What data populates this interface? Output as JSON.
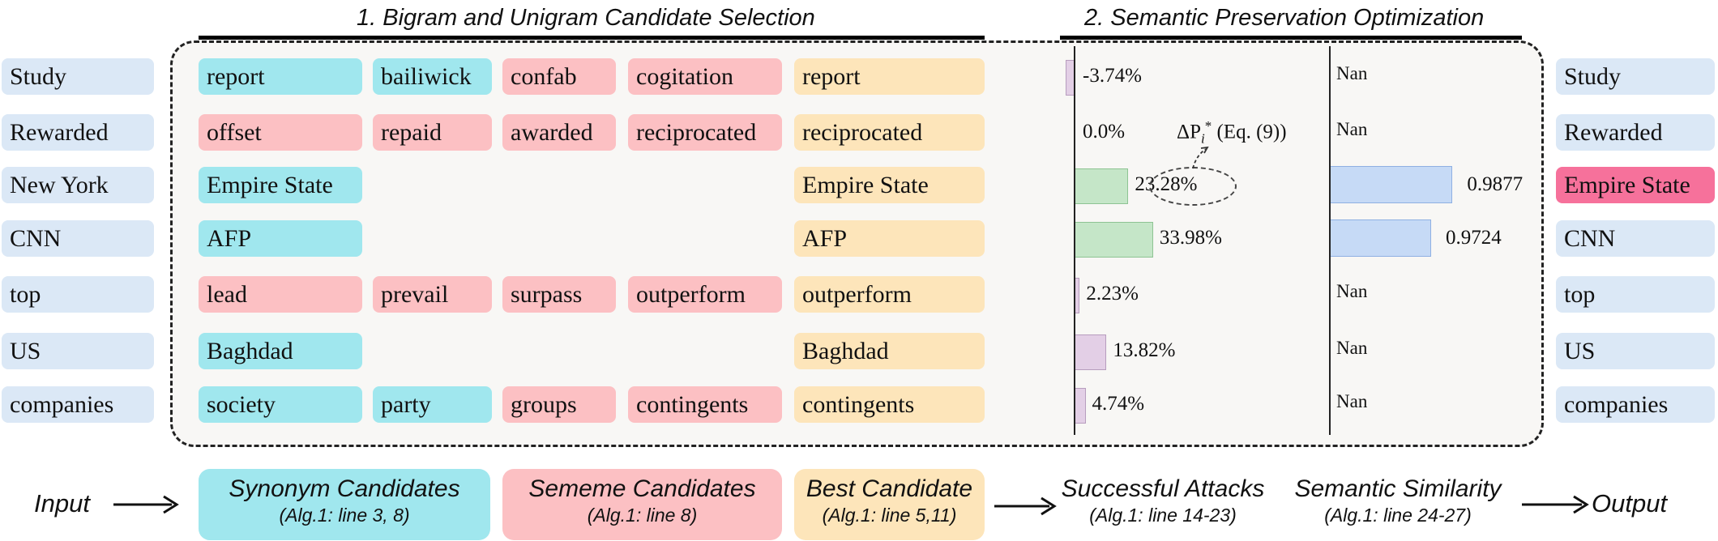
{
  "titles": {
    "section1": "1. Bigram and Unigram Candidate Selection",
    "section2": "2. Semantic Preservation Optimization"
  },
  "rows": [
    {
      "input": "Study",
      "synonyms": [
        "report",
        "bailiwick"
      ],
      "sememes": [
        "confab",
        "cogitation"
      ],
      "best": "report",
      "delta": -3.74,
      "delta_label": "-3.74%",
      "similarity": null,
      "similarity_label": "Nan",
      "output": "Study",
      "output_highlight": false
    },
    {
      "input": "Rewarded",
      "synonyms": [],
      "sememes": [
        "offset",
        "repaid",
        "awarded",
        "reciprocated"
      ],
      "best": "reciprocated",
      "delta": 0.0,
      "delta_label": "0.0%",
      "similarity": null,
      "similarity_label": "Nan",
      "output": "Rewarded",
      "output_highlight": false
    },
    {
      "input": "New York",
      "synonyms": [
        "Empire State"
      ],
      "sememes": [],
      "best": "Empire State",
      "delta": 23.28,
      "delta_label": "23.28%",
      "similarity": 0.9877,
      "similarity_label": "0.9877",
      "output": "Empire State",
      "output_highlight": true
    },
    {
      "input": "CNN",
      "synonyms": [
        "AFP"
      ],
      "sememes": [],
      "best": "AFP",
      "delta": 33.98,
      "delta_label": "33.98%",
      "similarity": 0.9724,
      "similarity_label": "0.9724",
      "output": "CNN",
      "output_highlight": false
    },
    {
      "input": "top",
      "synonyms": [],
      "sememes": [
        "lead",
        "prevail",
        "surpass",
        "outperform"
      ],
      "best": "outperform",
      "delta": 2.23,
      "delta_label": "2.23%",
      "similarity": null,
      "similarity_label": "Nan",
      "output": "top",
      "output_highlight": false
    },
    {
      "input": "US",
      "synonyms": [
        "Baghdad"
      ],
      "sememes": [],
      "best": "Baghdad",
      "delta": 13.82,
      "delta_label": "13.82%",
      "similarity": null,
      "similarity_label": "Nan",
      "output": "US",
      "output_highlight": false
    },
    {
      "input": "companies",
      "synonyms": [
        "society",
        "party"
      ],
      "sememes": [
        "groups",
        "contingents"
      ],
      "best": "contingents",
      "delta": 4.74,
      "delta_label": "4.74%",
      "similarity": null,
      "similarity_label": "Nan",
      "output": "companies",
      "output_highlight": false
    }
  ],
  "annotation": {
    "delta_symbol": "ΔP",
    "delta_sub": "i",
    "delta_sup": "*",
    "delta_eq": " (Eq. (9))"
  },
  "legend": {
    "input": "Input",
    "output": "Output",
    "synonym": {
      "title": "Synonym Candidates",
      "sub": "(Alg.1: line 3, 8)"
    },
    "sememe": {
      "title": "Sememe Candidates",
      "sub": "(Alg.1: line 8)"
    },
    "best": {
      "title": "Best Candidate",
      "sub": "(Alg.1: line 5,11)"
    },
    "attacks": {
      "title": "Successful Attacks",
      "sub": "(Alg.1: line 14-23)"
    },
    "similarity": {
      "title": "Semantic Similarity",
      "sub": "(Alg.1: line 24-27)"
    }
  },
  "colors": {
    "input_chip": "#dbe8f6",
    "synonym": "#a0e7ee",
    "sememe": "#fcc0c3",
    "best": "#fde5ba",
    "output_highlight": "#f6719b",
    "bar_negative_small": "#e3cfe6",
    "bar_positive_large": "#c5e6c8",
    "similarity_bar": "#c6daf6"
  }
}
